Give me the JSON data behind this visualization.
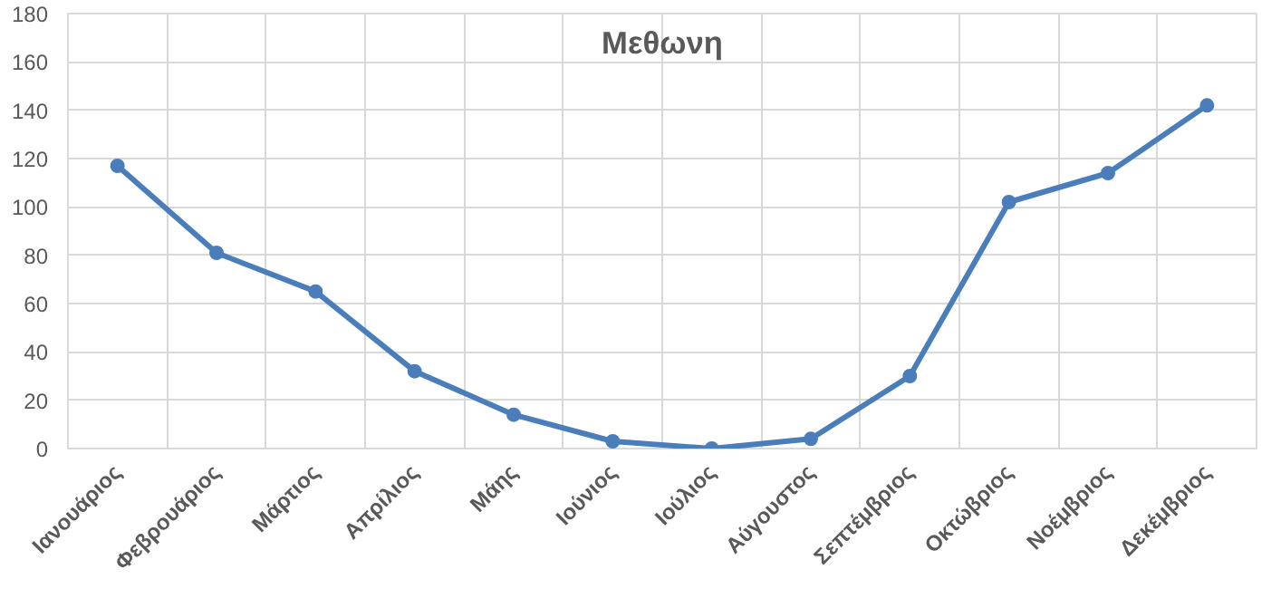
{
  "chart_data": {
    "type": "line",
    "title": "Μεθωνη",
    "categories": [
      "Ιανουάριος",
      "Φεβρουάριος",
      "Μάρτιος",
      "Απρίλιος",
      "Μάης",
      "Ιούνιος",
      "Ιούλιος",
      "Αύγουστος",
      "Σεπτέμβριος",
      "Οκτώβριος",
      "Νοέμβριος",
      "Δεκέμβριος"
    ],
    "series": [
      {
        "color": "#4a7ebb",
        "values": [
          117,
          81,
          65,
          32,
          14,
          3,
          0,
          4,
          30,
          102,
          114,
          142
        ]
      }
    ],
    "ylim": [
      0,
      180
    ],
    "yticks": [
      0,
      20,
      40,
      60,
      80,
      100,
      120,
      140,
      160,
      180
    ],
    "grid": true,
    "marker": "circle",
    "line_style": "solid"
  }
}
